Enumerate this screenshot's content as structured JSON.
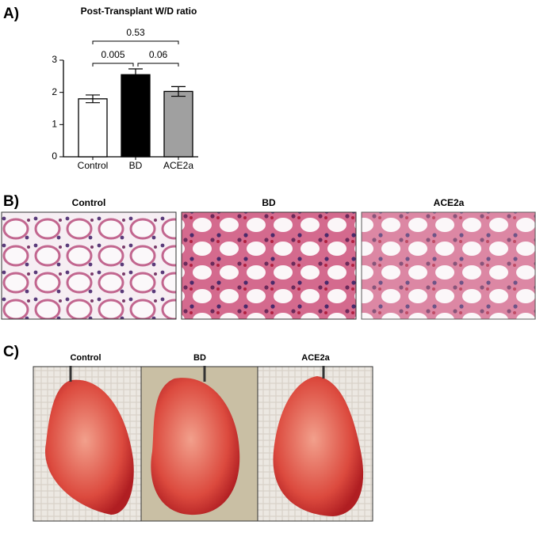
{
  "chart_data": {
    "type": "bar",
    "title": "Post-Transplant W/D ratio",
    "categories": [
      "Control",
      "BD",
      "ACE2a"
    ],
    "values": [
      1.8,
      2.55,
      2.03
    ],
    "errors": [
      0.12,
      0.18,
      0.15
    ],
    "colors": [
      "#ffffff",
      "#000000",
      "#a0a0a0"
    ],
    "ylim": [
      0,
      3
    ],
    "yticks": [
      0,
      1,
      2,
      3
    ],
    "grid": false,
    "comparisons": [
      {
        "groups": [
          0,
          1
        ],
        "p": 0.005
      },
      {
        "groups": [
          1,
          2
        ],
        "p": 0.06
      },
      {
        "groups": [
          0,
          2
        ],
        "p": 0.53
      }
    ]
  },
  "panel_labels": [
    "A)",
    "B)",
    "C)"
  ],
  "histology_titles": [
    "Control",
    "BD",
    "ACE2a"
  ],
  "gross_titles": [
    "Control",
    "BD",
    "ACE2a"
  ]
}
